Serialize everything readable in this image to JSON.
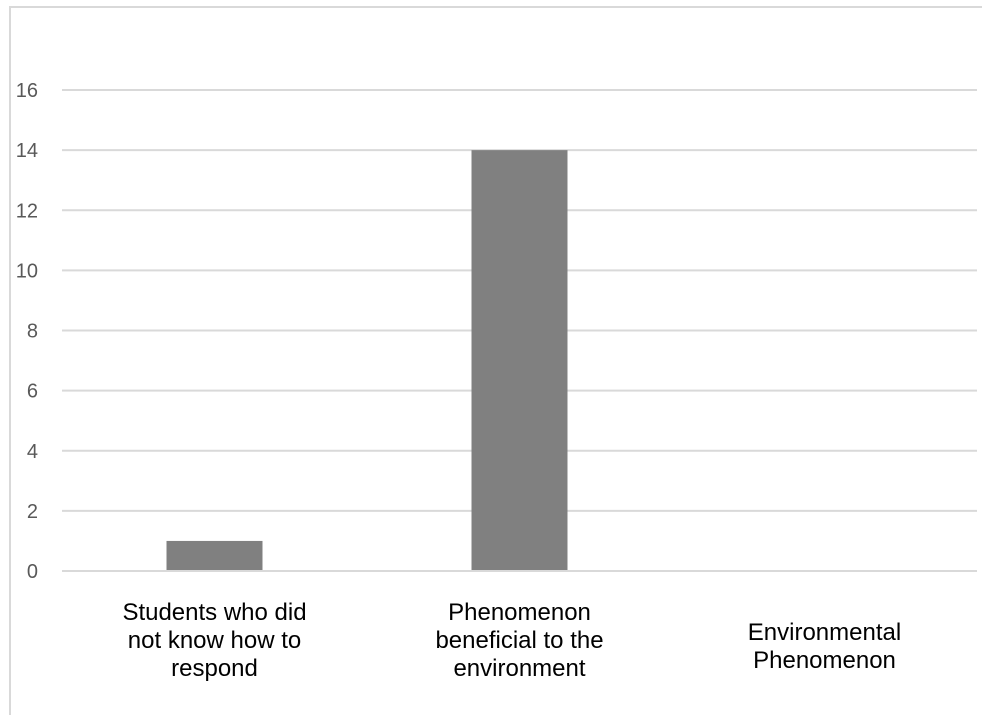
{
  "chart_data": {
    "type": "bar",
    "categories": [
      [
        "Students who did",
        "not know how to",
        "respond"
      ],
      [
        "Phenomenon",
        "beneficial to the",
        "environment"
      ],
      [
        "Environmental",
        "Phenomenon"
      ]
    ],
    "values": [
      1,
      14,
      0
    ],
    "title": "",
    "xlabel": "",
    "ylabel": "",
    "ylim": [
      0,
      16
    ],
    "yticks": [
      "0",
      "2",
      "4",
      "6",
      "8",
      "10",
      "12",
      "14",
      "16"
    ],
    "grid": true,
    "colors": {
      "bar": "#808080",
      "grid": "#d9d9d9",
      "tick_text": "#595959",
      "category_text": "#000000"
    }
  }
}
